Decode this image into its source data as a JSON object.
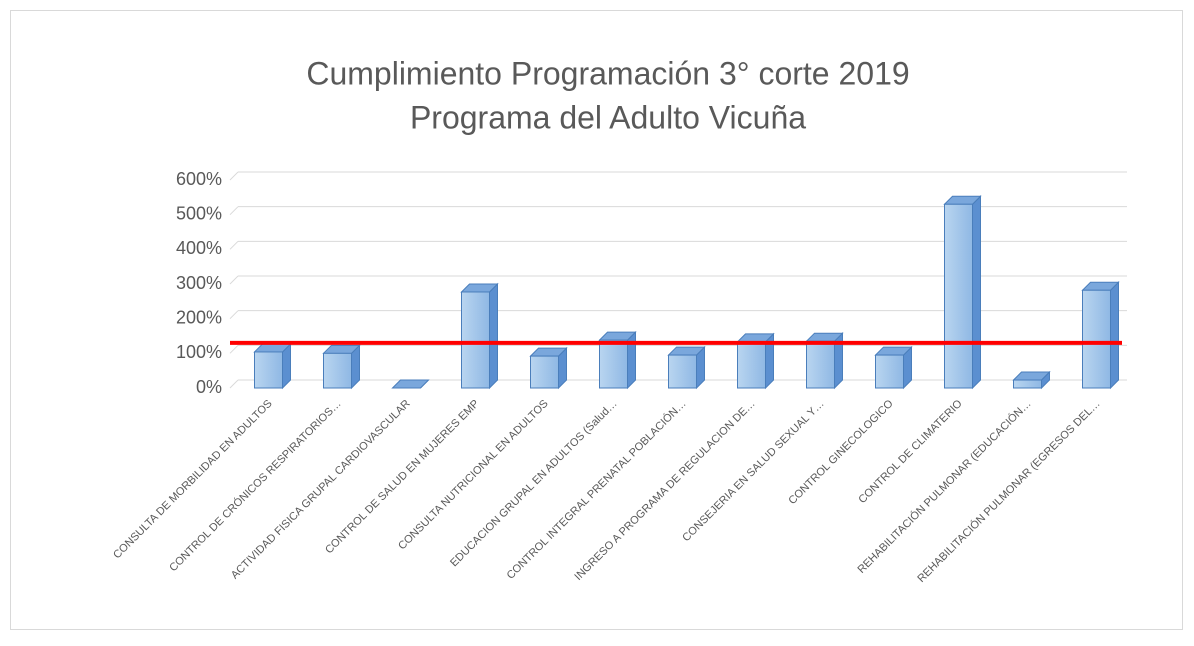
{
  "chart_data": {
    "type": "bar",
    "title": [
      "Cumplimiento Programación 3° corte 2019",
      "Programa del Adulto Vicuña"
    ],
    "categories": [
      "CONSULTA DE MORBILIDAD EN ADULTOS",
      "CONTROL DE CRÓNICOS  RESPIRATORIOS…",
      "ACTIVIDAD FISICA GRUPAL CARDIOVASCULAR",
      "CONTROL DE SALUD EN MUJERES EMP",
      "CONSULTA NUTRICIONAL EN ADULTOS",
      "EDUCACION GRUPAL EN ADULTOS (Salud…",
      "CONTROL INTEGRAL PRENATAL POBLACIÓN…",
      "INGRESO A PROGRAMA DE REGULACION DE…",
      "CONSEJERIA EN SALUD SEXUAL Y…",
      "CONTROL GINECOLOGICO",
      "CONTROL DE CLIMATERIO",
      "REHABILITACIÓN PULMONAR (EDUCACIÓN…",
      "REHABILITACIÓN PULMONAR (EGRESOS DEL…"
    ],
    "values": [
      104,
      100,
      0,
      277,
      92,
      138,
      95,
      133,
      135,
      95,
      530,
      23,
      282
    ],
    "color": "#9dc3e6",
    "ylim": [
      0,
      600
    ],
    "yticks": [
      {
        "value": 0,
        "label": "0%"
      },
      {
        "value": 100,
        "label": "100%"
      },
      {
        "value": 200,
        "label": "200%"
      },
      {
        "value": 300,
        "label": "300%"
      },
      {
        "value": 400,
        "label": "400%"
      },
      {
        "value": 500,
        "label": "500%"
      },
      {
        "value": 600,
        "label": "600%"
      }
    ],
    "grid": true,
    "reference_line": {
      "value": 130,
      "color": "#ff0000"
    }
  }
}
